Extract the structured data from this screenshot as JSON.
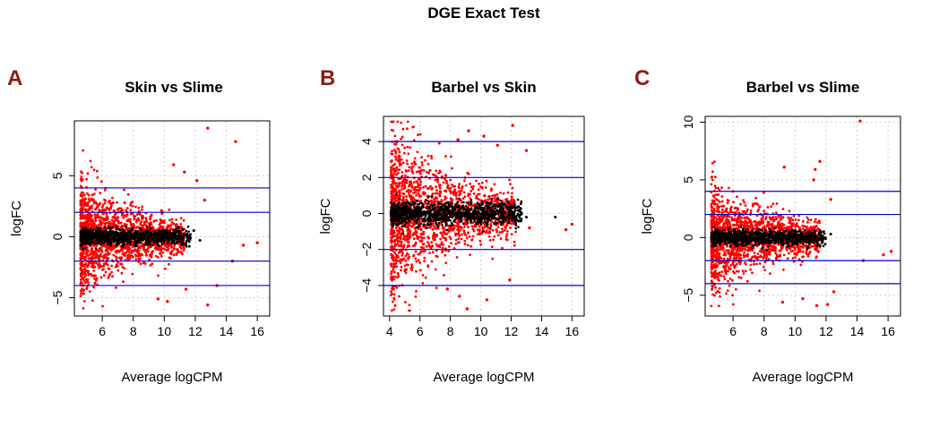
{
  "figure": {
    "title": "DGE Exact Test"
  },
  "colors": {
    "significant": "#ff0000",
    "nonsignificant": "#000000",
    "threshold_line": "#0000cc",
    "grid": "#cfcfcf",
    "panel_letter": "#8b1a1a"
  },
  "chart_data": [
    {
      "type": "scatter",
      "panel": "A",
      "title": "Skin vs Slime",
      "xlabel": "Average logCPM",
      "ylabel": "logFC",
      "xlim": [
        4.2,
        16.8
      ],
      "ylim": [
        -6.5,
        9.5
      ],
      "xticks": [
        6,
        8,
        10,
        12,
        14,
        16
      ],
      "yticks": [
        -5,
        0,
        5
      ],
      "grid": true,
      "hlines": [
        4,
        2,
        -2,
        -4
      ],
      "cloud": {
        "x_min": 4.6,
        "core_x_max": 10.5,
        "spread_at_min": 2.6,
        "spread_decay": 0.22
      },
      "outliers": [
        {
          "x": 12.8,
          "y": 8.9
        },
        {
          "x": 14.6,
          "y": 7.8
        },
        {
          "x": 10.6,
          "y": 5.9
        },
        {
          "x": 12.1,
          "y": 4.6
        },
        {
          "x": 11.3,
          "y": 5.3
        },
        {
          "x": 12.6,
          "y": 3.0
        },
        {
          "x": 15.1,
          "y": -0.7
        },
        {
          "x": 16.0,
          "y": -0.5
        },
        {
          "x": 14.4,
          "y": -2.0
        },
        {
          "x": 12.8,
          "y": -5.6
        },
        {
          "x": 10.2,
          "y": -5.3
        },
        {
          "x": 11.4,
          "y": -4.3
        },
        {
          "x": 9.6,
          "y": -5.1
        },
        {
          "x": 13.4,
          "y": -4.0
        }
      ],
      "black_tail": [
        {
          "x": 11.2,
          "y": 0.6
        },
        {
          "x": 11.6,
          "y": 0.1
        },
        {
          "x": 11.9,
          "y": 0.5
        },
        {
          "x": 12.3,
          "y": -0.3
        }
      ]
    },
    {
      "type": "scatter",
      "panel": "B",
      "title": "Barbel vs Skin",
      "xlabel": "Average logCPM",
      "ylabel": "logFC",
      "xlim": [
        3.6,
        16.8
      ],
      "ylim": [
        -5.7,
        5.4
      ],
      "xticks": [
        4,
        6,
        8,
        10,
        12,
        14,
        16
      ],
      "yticks": [
        -4,
        -2,
        0,
        2,
        4
      ],
      "grid": true,
      "hlines": [
        4,
        2,
        -2,
        -4
      ],
      "cloud": {
        "x_min": 4.1,
        "core_x_max": 11.5,
        "spread_at_min": 2.7,
        "spread_decay": 0.2
      },
      "outliers": [
        {
          "x": 12.1,
          "y": 4.9
        },
        {
          "x": 9.2,
          "y": 4.6
        },
        {
          "x": 13.0,
          "y": 3.5
        },
        {
          "x": 10.2,
          "y": 4.3
        },
        {
          "x": 8.5,
          "y": 4.1
        },
        {
          "x": 11.1,
          "y": 3.8
        },
        {
          "x": 16.0,
          "y": -0.6
        },
        {
          "x": 15.6,
          "y": -0.9
        },
        {
          "x": 13.2,
          "y": -0.8
        },
        {
          "x": 9.1,
          "y": -5.3
        },
        {
          "x": 8.6,
          "y": -4.6
        },
        {
          "x": 10.4,
          "y": -4.8
        },
        {
          "x": 11.9,
          "y": -3.7
        },
        {
          "x": 7.8,
          "y": -4.2
        }
      ],
      "black_tail": [
        {
          "x": 12.6,
          "y": 0.3
        },
        {
          "x": 13.0,
          "y": -0.2
        },
        {
          "x": 14.9,
          "y": -0.2
        },
        {
          "x": 12.2,
          "y": 0.4
        }
      ]
    },
    {
      "type": "scatter",
      "panel": "C",
      "title": "Barbel vs Slime",
      "xlabel": "Average logCPM",
      "ylabel": "logFC",
      "xlim": [
        4.2,
        16.8
      ],
      "ylim": [
        -6.8,
        10.5
      ],
      "xticks": [
        6,
        8,
        10,
        12,
        14,
        16
      ],
      "yticks": [
        -5,
        0,
        5,
        10
      ],
      "grid": true,
      "hlines": [
        4,
        2,
        -2,
        -4
      ],
      "cloud": {
        "x_min": 4.6,
        "core_x_max": 10.8,
        "spread_at_min": 2.7,
        "spread_decay": 0.22
      },
      "outliers": [
        {
          "x": 14.2,
          "y": 10.1
        },
        {
          "x": 11.6,
          "y": 6.6
        },
        {
          "x": 11.3,
          "y": 5.9
        },
        {
          "x": 9.3,
          "y": 6.1
        },
        {
          "x": 11.2,
          "y": 5.0
        },
        {
          "x": 12.3,
          "y": 3.3
        },
        {
          "x": 16.2,
          "y": -1.2
        },
        {
          "x": 15.7,
          "y": -1.5
        },
        {
          "x": 14.4,
          "y": -2.0
        },
        {
          "x": 12.1,
          "y": -5.8
        },
        {
          "x": 11.4,
          "y": -5.9
        },
        {
          "x": 10.5,
          "y": -5.3
        },
        {
          "x": 9.2,
          "y": -5.6
        },
        {
          "x": 12.5,
          "y": -4.7
        }
      ],
      "black_tail": [
        {
          "x": 11.3,
          "y": 0.5
        },
        {
          "x": 11.8,
          "y": -0.1
        },
        {
          "x": 12.3,
          "y": 0.3
        },
        {
          "x": 11.0,
          "y": 0.2
        }
      ]
    }
  ]
}
